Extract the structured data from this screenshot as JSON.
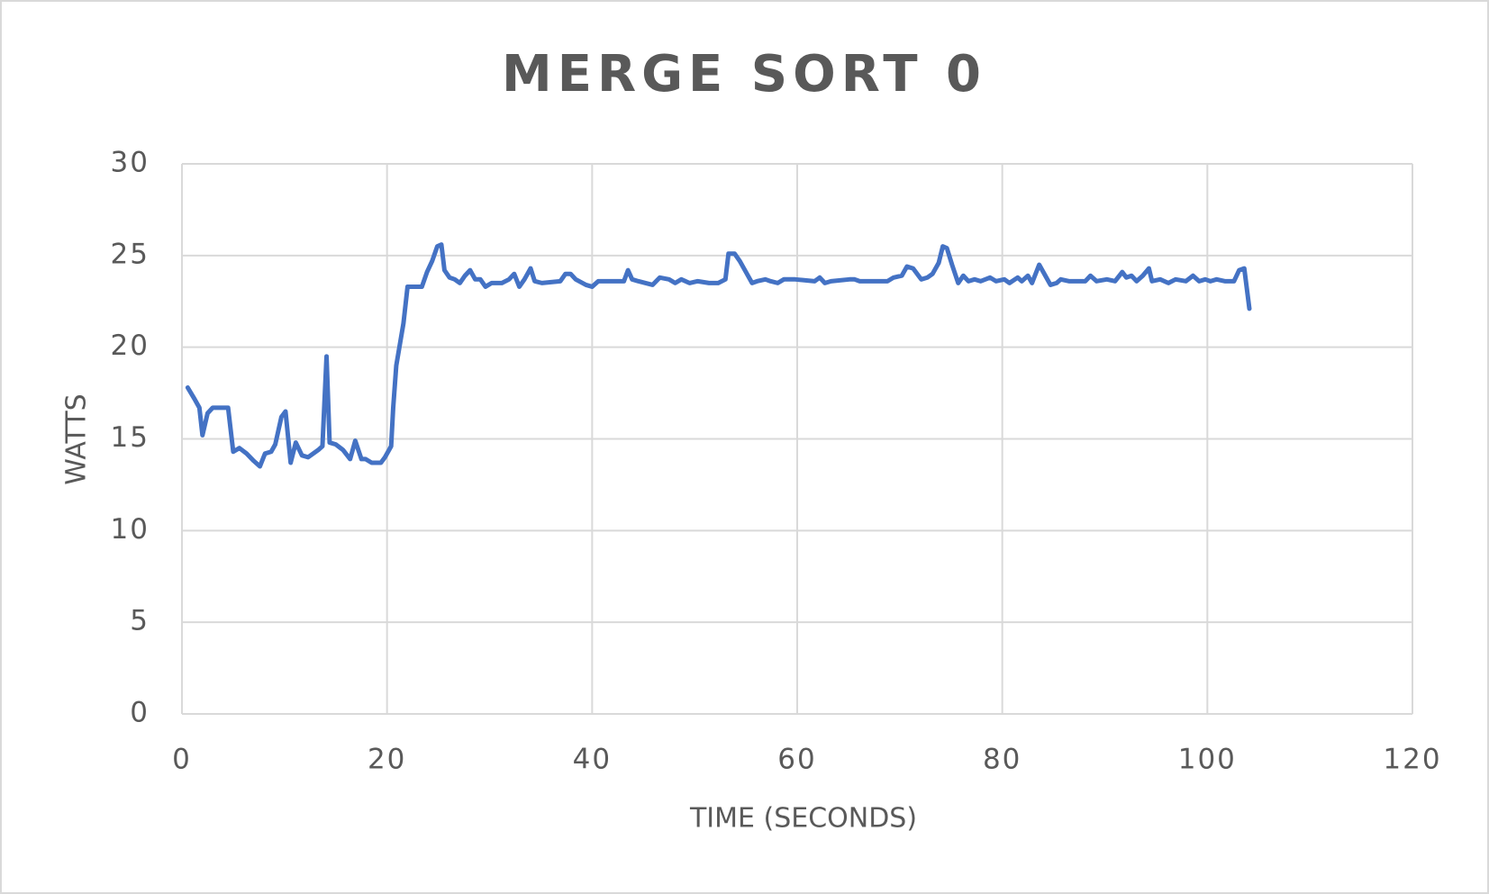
{
  "chart_data": {
    "type": "line",
    "title": "MERGE SORT 0",
    "x_label": "TIME (SECONDS)",
    "y_label": "WATTS",
    "color": "#4472c4",
    "grid": true,
    "xlim": [
      0,
      120
    ],
    "xticks": [
      0,
      20,
      40,
      60,
      80,
      100,
      120
    ],
    "ylim": [
      0,
      30
    ],
    "yticks": [
      0,
      5,
      10,
      15,
      20,
      25,
      30
    ],
    "x": [
      0.56,
      1.2,
      1.7,
      2.0,
      2.5,
      3.0,
      3.7,
      4.5,
      5.0,
      5.6,
      6.3,
      7.0,
      7.6,
      8.1,
      8.7,
      9.1,
      9.7,
      10.1,
      10.6,
      11.1,
      11.7,
      12.3,
      13.3,
      13.7,
      14.1,
      14.4,
      15.0,
      15.7,
      16.4,
      16.9,
      17.5,
      17.9,
      18.5,
      19.4,
      19.8,
      20.4,
      20.6,
      20.9,
      21.6,
      22.0,
      22.7,
      23.4,
      23.9,
      24.4,
      24.9,
      25.3,
      25.6,
      26.1,
      26.6,
      27.1,
      27.6,
      28.1,
      28.6,
      29.1,
      29.6,
      30.2,
      31.2,
      31.9,
      32.4,
      32.9,
      33.4,
      34.0,
      34.4,
      35.1,
      36.9,
      37.4,
      37.9,
      38.4,
      39.4,
      40.0,
      40.6,
      42.4,
      43.1,
      43.5,
      43.9,
      44.5,
      45.9,
      46.6,
      47.5,
      48.1,
      48.7,
      49.5,
      50.3,
      51.4,
      52.3,
      53.0,
      53.3,
      53.9,
      54.4,
      55.1,
      55.6,
      56.1,
      56.9,
      57.4,
      58.1,
      58.7,
      59.8,
      61.7,
      62.2,
      62.7,
      63.3,
      65.1,
      65.6,
      66.1,
      68.3,
      68.8,
      69.4,
      70.2,
      70.7,
      71.3,
      72.1,
      72.7,
      73.2,
      73.8,
      74.2,
      74.6,
      75.1,
      75.7,
      76.2,
      76.7,
      77.3,
      77.9,
      78.8,
      79.4,
      80.2,
      80.7,
      81.5,
      81.9,
      82.5,
      82.9,
      83.6,
      84.2,
      84.7,
      85.3,
      85.7,
      86.5,
      87.5,
      88.1,
      88.6,
      89.2,
      90.2,
      91.0,
      91.7,
      92.1,
      92.6,
      93.1,
      93.7,
      94.3,
      94.6,
      95.4,
      96.2,
      96.9,
      97.9,
      98.6,
      99.2,
      99.8,
      100.3,
      100.9,
      101.7,
      102.6,
      103.1,
      103.6,
      104.1
    ],
    "values": [
      17.8,
      17.2,
      16.7,
      15.2,
      16.4,
      16.7,
      16.7,
      16.7,
      14.3,
      14.5,
      14.2,
      13.8,
      13.5,
      14.2,
      14.3,
      14.7,
      16.2,
      16.5,
      13.7,
      14.8,
      14.1,
      14.0,
      14.4,
      14.6,
      19.5,
      14.8,
      14.7,
      14.4,
      13.9,
      14.9,
      13.9,
      13.9,
      13.7,
      13.7,
      14.0,
      14.6,
      16.7,
      19.0,
      21.3,
      23.3,
      23.3,
      23.3,
      24.1,
      24.7,
      25.5,
      25.6,
      24.2,
      23.8,
      23.7,
      23.5,
      23.9,
      24.2,
      23.7,
      23.7,
      23.3,
      23.5,
      23.5,
      23.7,
      24.0,
      23.3,
      23.7,
      24.3,
      23.6,
      23.5,
      23.6,
      24.0,
      24.0,
      23.7,
      23.4,
      23.3,
      23.6,
      23.6,
      23.6,
      24.2,
      23.7,
      23.6,
      23.4,
      23.8,
      23.7,
      23.5,
      23.7,
      23.5,
      23.6,
      23.5,
      23.5,
      23.7,
      25.1,
      25.1,
      24.7,
      24.0,
      23.5,
      23.6,
      23.7,
      23.6,
      23.5,
      23.7,
      23.7,
      23.6,
      23.8,
      23.5,
      23.6,
      23.7,
      23.7,
      23.6,
      23.6,
      23.6,
      23.8,
      23.9,
      24.4,
      24.3,
      23.7,
      23.8,
      24.0,
      24.6,
      25.5,
      25.4,
      24.5,
      23.5,
      23.9,
      23.6,
      23.7,
      23.6,
      23.8,
      23.6,
      23.7,
      23.5,
      23.8,
      23.6,
      23.9,
      23.5,
      24.5,
      23.9,
      23.4,
      23.5,
      23.7,
      23.6,
      23.6,
      23.6,
      23.9,
      23.6,
      23.7,
      23.6,
      24.1,
      23.8,
      23.9,
      23.6,
      23.9,
      24.3,
      23.6,
      23.7,
      23.5,
      23.7,
      23.6,
      23.9,
      23.6,
      23.7,
      23.6,
      23.7,
      23.6,
      23.6,
      24.2,
      24.3,
      22.1
    ]
  }
}
